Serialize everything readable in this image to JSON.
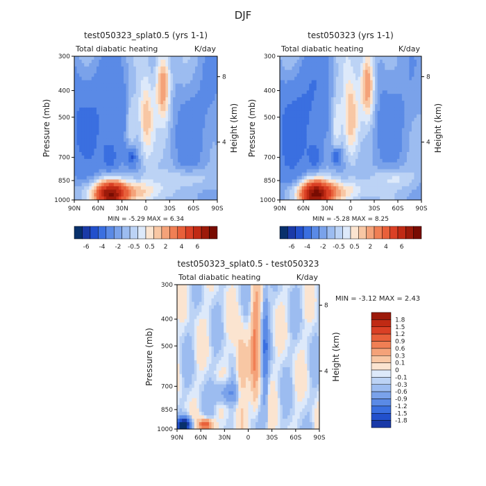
{
  "figure_title": "DJF",
  "colors": {
    "neg": [
      "#08306b",
      "#1a3aa8",
      "#2250cc",
      "#3a6fe0",
      "#5a8ae6",
      "#7aa2ea",
      "#9cbcf0",
      "#bcd3f5",
      "#dde9fa"
    ],
    "pos": [
      "#fbe4d0",
      "#f8c7a4",
      "#f4a279",
      "#f07f54",
      "#e8603a",
      "#da4025",
      "#c02a14",
      "#9c1a0a",
      "#780c02"
    ]
  },
  "chart_data": [
    {
      "type": "heatmap",
      "panel": "left",
      "title": "test050323_splat0.5 (yrs 1-1)",
      "subtitle_left": "Total diabatic heating",
      "subtitle_right": "K/day",
      "ylabel": "Pressure (mb)",
      "ylabel_right": "Height (km)",
      "x_ticks": [
        "90N",
        "60N",
        "30N",
        "0",
        "30S",
        "60S",
        "90S"
      ],
      "x_range": [
        90,
        -90
      ],
      "y_ticks": [
        "300",
        "400",
        "500",
        "700",
        "850",
        "1000"
      ],
      "y_right_ticks": [
        "8",
        "4"
      ],
      "stats": "MIN =   -5.29   MAX =    6.34",
      "colorbar_ticks": [
        "-6",
        "-4",
        "-2",
        "-0.5",
        "0.5",
        "2",
        "4",
        "6"
      ]
    },
    {
      "type": "heatmap",
      "panel": "right",
      "title": "test050323 (yrs 1-1)",
      "subtitle_left": "Total diabatic heating",
      "subtitle_right": "K/day",
      "ylabel": "Pressure (mb)",
      "ylabel_right": "Height (km)",
      "x_ticks": [
        "90N",
        "60N",
        "30N",
        "0",
        "30S",
        "60S",
        "90S"
      ],
      "x_range": [
        90,
        -90
      ],
      "y_ticks": [
        "300",
        "400",
        "500",
        "700",
        "850",
        "1000"
      ],
      "y_right_ticks": [
        "8",
        "4"
      ],
      "stats": "MIN =   -5.28   MAX =    8.25",
      "colorbar_ticks": [
        "-6",
        "-4",
        "-2",
        "-0.5",
        "0.5",
        "2",
        "4",
        "6"
      ]
    },
    {
      "type": "heatmap",
      "panel": "difference",
      "title": "test050323_splat0.5 - test050323",
      "subtitle_left": "Total diabatic heating",
      "subtitle_right": "K/day",
      "ylabel": "Pressure (mb)",
      "ylabel_right": "Height (km)",
      "x_ticks": [
        "90N",
        "60N",
        "30N",
        "0",
        "30S",
        "60S",
        "90S"
      ],
      "x_range": [
        90,
        -90
      ],
      "y_ticks": [
        "300",
        "400",
        "500",
        "700",
        "850",
        "1000"
      ],
      "y_right_ticks": [
        "8",
        "4"
      ],
      "stats": "MIN =   -3.12   MAX =    2.43",
      "colorbar_ticks": [
        "1.8",
        "1.5",
        "1.2",
        "0.9",
        "0.6",
        "0.3",
        "0.1",
        "0",
        "-0.1",
        "-0.3",
        "-0.6",
        "-0.9",
        "-1.2",
        "-1.5",
        "-1.8"
      ]
    }
  ]
}
